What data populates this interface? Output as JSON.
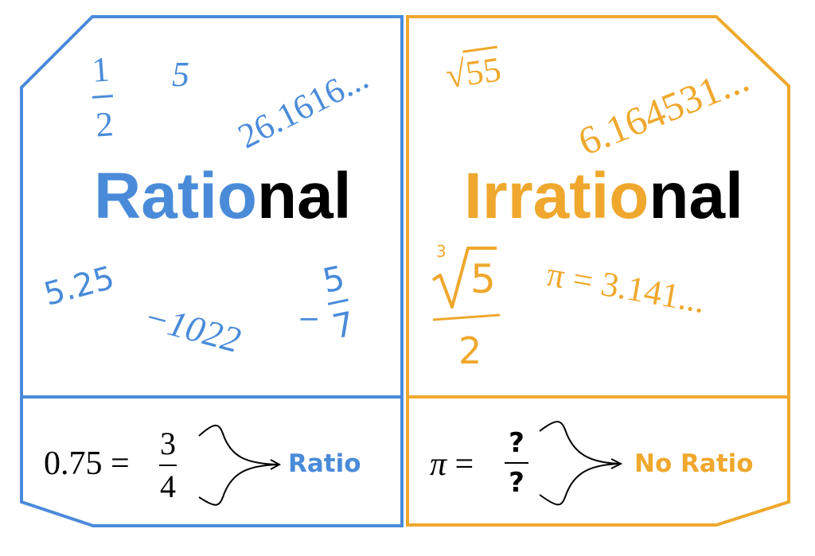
{
  "colors": {
    "rational": "#4a8bd9",
    "irrational": "#efa82d",
    "text": "#000000"
  },
  "rational": {
    "title_colored": "Ratio",
    "title_black": "nal",
    "examples": {
      "half_num": "1",
      "half_den": "2",
      "five": "5",
      "repeating": "26.1616...",
      "decimal": "5.25",
      "negative": "−1022",
      "neg_frac_sign": "−",
      "neg_frac_num": "5",
      "neg_frac_den": "7"
    },
    "equation": {
      "lhs": "0.75",
      "eq": "=",
      "num": "3",
      "den": "4"
    },
    "result_label": "Ratio"
  },
  "irrational": {
    "title_colored": "Irratio",
    "title_black": "nal",
    "examples": {
      "sqrt_radicand": "55",
      "decimal": "6.164531...",
      "cbrt_index": "3",
      "cbrt_radicand": "5",
      "cbrt_den": "2",
      "pi": "π = 3.141..."
    },
    "equation": {
      "lhs": "π",
      "eq": "=",
      "num": "?",
      "den": "?"
    },
    "result_label": "No Ratio"
  },
  "icons": [
    "brace-arrow-icon",
    "brace-arrow-icon"
  ]
}
